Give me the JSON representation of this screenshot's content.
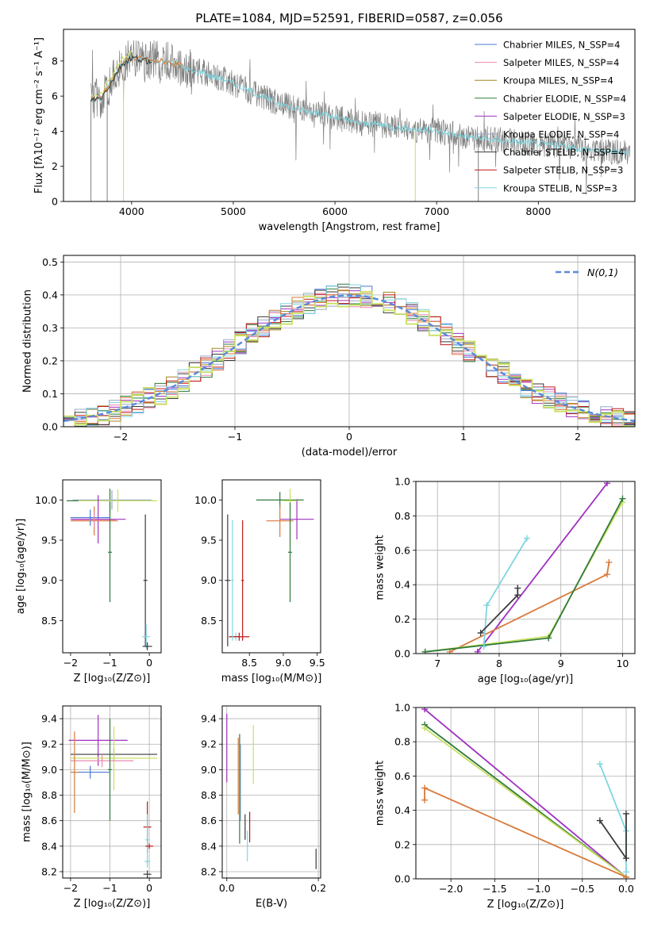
{
  "figure": {
    "title": "PLATE=1084, MJD=52591, FIBERID=0587, z=0.056"
  },
  "colors": {
    "Chabrier MILES": "#4a7ad6",
    "Salpeter MILES": "#ea8ab0",
    "Kroupa MILES": "#a08520",
    "Chabrier ELODIE": "#2f7a3a",
    "Salpeter ELODIE": "#a030c0",
    "Kroupa ELODIE": "#96a8c8",
    "Chabrier STELIB": "#3a3a3a",
    "Salpeter STELIB": "#c01818",
    "Kroupa STELIB": "#7ed6e0",
    "orange": "#d87a3a",
    "lime": "#c8e060",
    "data": "#808080",
    "gauss": "#5a8ad8"
  },
  "chart_data": [
    {
      "id": "spectrum",
      "type": "line",
      "title": "PLATE=1084, MJD=52591, FIBERID=0587, z=0.056",
      "xlabel": "wavelength [Angstrom, rest frame]",
      "ylabel": "Flux [fλ10⁻¹⁷ erg cm⁻² s⁻¹ A⁻¹]",
      "xlim": [
        3330,
        8950
      ],
      "ylim": [
        0,
        9.8
      ],
      "xticks": [
        4000,
        5000,
        6000,
        7000,
        8000
      ],
      "yticks": [
        0,
        2,
        4,
        6,
        8
      ],
      "grid": false,
      "legend_position": "upper-right",
      "legend": [
        "Chabrier MILES, N_SSP=4",
        "Salpeter MILES, N_SSP=4",
        "Kroupa MILES, N_SSP=4",
        "Chabrier ELODIE, N_SSP=4",
        "Salpeter ELODIE, N_SSP=3",
        "Kroupa ELODIE, N_SSP=4",
        "Chabrier STELIB, N_SSP=4",
        "Salpeter STELIB, N_SSP=3",
        "Kroupa STELIB, N_SSP=3"
      ],
      "continuum": {
        "x": [
          3600,
          3700,
          3800,
          3900,
          4000,
          4100,
          4200,
          4300,
          4400,
          4500,
          4600,
          4700,
          4800,
          4900,
          5000,
          5200,
          5400,
          5600,
          5800,
          6000,
          6200,
          6400,
          6600,
          6800,
          7000,
          7200,
          7400,
          7600,
          7800,
          8000,
          8200,
          8400,
          8600,
          8800
        ],
        "y": [
          5.8,
          5.9,
          6.8,
          7.8,
          8.2,
          8.1,
          8.0,
          8.0,
          7.9,
          7.7,
          7.4,
          7.4,
          7.1,
          7.0,
          6.7,
          6.2,
          5.7,
          5.3,
          5.1,
          4.8,
          4.5,
          4.4,
          4.2,
          4.1,
          4.0,
          3.8,
          3.6,
          3.5,
          3.4,
          3.3,
          3.2,
          3.0,
          2.9,
          2.8
        ]
      }
    },
    {
      "id": "residuals",
      "type": "line",
      "xlabel": "(data-model)/error",
      "ylabel": "Normed distribution",
      "xlim": [
        -2.5,
        2.5
      ],
      "ylim": [
        0,
        0.52
      ],
      "xticks": [
        -2,
        -1,
        0,
        1,
        2
      ],
      "yticks": [
        0.0,
        0.1,
        0.2,
        0.3,
        0.4,
        0.5
      ],
      "grid": true,
      "legend_position": "upper-right",
      "legend": [
        "N(0,1)"
      ],
      "gaussian": {
        "mean": 0,
        "sigma": 1
      }
    },
    {
      "id": "age-vs-Z",
      "type": "scatter",
      "xlabel": "Z [log₁₀(Z/Z⊙)]",
      "ylabel": "age  [log₁₀(age/yr)]",
      "xlim": [
        -2.2,
        0.3
      ],
      "ylim": [
        8.1,
        10.25
      ],
      "xticks": [
        -2,
        -1,
        0
      ],
      "yticks": [
        8.5,
        9.0,
        9.5,
        10.0
      ],
      "grid": false,
      "errorbars": [
        {
          "color": "Chabrier ELODIE",
          "x": -1.0,
          "y": 9.99,
          "xerr": 1.1,
          "yerr": 0.15
        },
        {
          "color": "Kroupa ELODIE",
          "x": -0.95,
          "y": 10.0,
          "xerr": 1.0,
          "yerr": 0.12
        },
        {
          "color": "lime",
          "x": -0.8,
          "y": 9.99,
          "xerr": 1.0,
          "yerr": 0.14
        },
        {
          "color": "Salpeter ELODIE",
          "x": -1.3,
          "y": 9.76,
          "xerr": 0.7,
          "yerr": 0.3
        },
        {
          "color": "orange",
          "x": -1.4,
          "y": 9.74,
          "xerr": 0.6,
          "yerr": 0.18
        },
        {
          "color": "Chabrier MILES",
          "x": -1.5,
          "y": 9.78,
          "xerr": 0.5,
          "yerr": 0.1
        },
        {
          "color": "Salpeter MILES",
          "x": -1.4,
          "y": 9.75,
          "xerr": 0.55,
          "yerr": 0.1
        },
        {
          "color": "Chabrier ELODIE",
          "x": -1.0,
          "y": 9.35,
          "xerr": 0.05,
          "yerr": 0.62
        },
        {
          "color": "Chabrier STELIB",
          "x": -0.1,
          "y": 9.0,
          "xerr": 0.05,
          "yerr": 0.82
        },
        {
          "color": "Kroupa STELIB",
          "x": -0.08,
          "y": 8.3,
          "xerr": 0.1,
          "yerr": 0.15
        },
        {
          "color": "Chabrier STELIB",
          "x": -0.05,
          "y": 8.18,
          "xerr": 0.12,
          "yerr": 0.05
        }
      ]
    },
    {
      "id": "age-vs-mass",
      "type": "scatter",
      "xlabel": "mass [log₁₀(M/M⊙)]",
      "ylabel": "",
      "xlim": [
        8.1,
        9.55
      ],
      "ylim": [
        8.1,
        10.25
      ],
      "xticks": [
        8.5,
        9.0,
        9.5
      ],
      "yticks": [
        8.5,
        9.0,
        9.5,
        10.0
      ],
      "grid": false,
      "errorbars": [
        {
          "color": "Chabrier ELODIE",
          "x": 8.95,
          "y": 10.0,
          "xerr": 0.35,
          "yerr": 0.1
        },
        {
          "color": "Salpeter ELODIE",
          "x": 9.2,
          "y": 9.76,
          "xerr": 0.25,
          "yerr": 0.25
        },
        {
          "color": "orange",
          "x": 8.95,
          "y": 9.74,
          "xerr": 0.2,
          "yerr": 0.2
        },
        {
          "color": "lime",
          "x": 9.1,
          "y": 9.99,
          "xerr": 0.1,
          "yerr": 0.15
        },
        {
          "color": "Chabrier ELODIE",
          "x": 9.1,
          "y": 9.35,
          "xerr": 0.03,
          "yerr": 0.62
        },
        {
          "color": "Salpeter STELIB",
          "x": 8.4,
          "y": 9.0,
          "xerr": 0.02,
          "yerr": 0.75
        },
        {
          "color": "Kroupa STELIB",
          "x": 8.3,
          "y": 8.3,
          "xerr": 0.1,
          "yerr": 0.05
        },
        {
          "color": "Salpeter STELIB",
          "x": 8.35,
          "y": 8.3,
          "xerr": 0.15,
          "yerr": 0.05
        },
        {
          "color": "Chabrier STELIB",
          "x": 8.18,
          "y": 9.0,
          "xerr": 0.04,
          "yerr": 0.82
        },
        {
          "color": "Kroupa STELIB",
          "x": 8.25,
          "y": 9.0,
          "xerr": 0.02,
          "yerr": 0.75
        }
      ]
    },
    {
      "id": "massweight-vs-age",
      "type": "line",
      "xlabel": "age  [log₁₀(age/yr)]",
      "ylabel": "mass weight",
      "xlim": [
        6.65,
        10.2
      ],
      "ylim": [
        0,
        1.0
      ],
      "xticks": [
        7,
        8,
        9,
        10
      ],
      "yticks": [
        0.0,
        0.2,
        0.4,
        0.6,
        0.8,
        1.0
      ],
      "grid": true,
      "series": [
        {
          "color": "Salpeter ELODIE",
          "x": [
            7.65,
            9.75
          ],
          "y": [
            0.01,
            0.99
          ]
        },
        {
          "color": "orange",
          "x": [
            7.2,
            9.75,
            9.78
          ],
          "y": [
            0.01,
            0.46,
            0.53
          ]
        },
        {
          "color": "lime",
          "x": [
            6.8,
            8.8,
            10.0
          ],
          "y": [
            0.01,
            0.1,
            0.88
          ]
        },
        {
          "color": "Chabrier ELODIE",
          "x": [
            6.8,
            8.8,
            10.0
          ],
          "y": [
            0.01,
            0.09,
            0.9
          ]
        },
        {
          "color": "Kroupa STELIB",
          "x": [
            7.75,
            7.8,
            8.45
          ],
          "y": [
            0.04,
            0.28,
            0.67
          ]
        },
        {
          "color": "Chabrier STELIB",
          "x": [
            7.7,
            8.3,
            8.3
          ],
          "y": [
            0.12,
            0.34,
            0.38
          ]
        }
      ]
    },
    {
      "id": "mass-vs-Z",
      "type": "scatter",
      "xlabel": "Z [log₁₀(Z/Z⊙)]",
      "ylabel": "mass [log₁₀(M/M⊙)]",
      "xlim": [
        -2.2,
        0.3
      ],
      "ylim": [
        8.15,
        9.5
      ],
      "xticks": [
        -2,
        -1,
        0
      ],
      "yticks": [
        8.2,
        8.4,
        8.6,
        8.8,
        9.0,
        9.2,
        9.4
      ],
      "grid": true,
      "errorbars": [
        {
          "color": "Salpeter ELODIE",
          "x": -1.3,
          "y": 9.23,
          "xerr": 0.75,
          "yerr": 0.2
        },
        {
          "color": "Chabrier STELIB",
          "x": -0.9,
          "y": 9.12,
          "xerr": 1.1,
          "yerr": 0.05
        },
        {
          "color": "lime",
          "x": -0.9,
          "y": 9.09,
          "xerr": 1.1,
          "yerr": 0.25
        },
        {
          "color": "Salpeter MILES",
          "x": -1.2,
          "y": 9.07,
          "xerr": 0.8,
          "yerr": 0.05
        },
        {
          "color": "Chabrier ELODIE",
          "x": -1.0,
          "y": 9.0,
          "xerr": 0.05,
          "yerr": 0.4
        },
        {
          "color": "Chabrier MILES",
          "x": -1.5,
          "y": 8.98,
          "xerr": 0.5,
          "yerr": 0.05
        },
        {
          "color": "orange",
          "x": -1.9,
          "y": 8.98,
          "xerr": 0.1,
          "yerr": 0.32
        },
        {
          "color": "Salpeter STELIB",
          "x": -0.05,
          "y": 8.55,
          "xerr": 0.1,
          "yerr": 0.2
        },
        {
          "color": "Kroupa STELIB",
          "x": -0.05,
          "y": 8.45,
          "xerr": 0.05,
          "yerr": 0.2
        },
        {
          "color": "Salpeter STELIB",
          "x": 0.0,
          "y": 8.4,
          "xerr": 0.1,
          "yerr": 0.02
        },
        {
          "color": "Kroupa STELIB",
          "x": -0.05,
          "y": 8.28,
          "xerr": 0.07,
          "yerr": 0.05
        },
        {
          "color": "Chabrier STELIB",
          "x": -0.05,
          "y": 8.18,
          "xerr": 0.1,
          "yerr": 0.03
        }
      ]
    },
    {
      "id": "mass-vs-EBV",
      "type": "scatter",
      "xlabel": "E(B-V)",
      "ylabel": "",
      "xlim": [
        -0.01,
        0.205
      ],
      "ylim": [
        8.15,
        9.5
      ],
      "xticks": [
        0.0,
        0.2
      ],
      "yticks": [
        8.2,
        8.4,
        8.6,
        8.8,
        9.0,
        9.2,
        9.4
      ],
      "grid": true,
      "errorbars": [
        {
          "color": "Salpeter ELODIE",
          "x": 0.0,
          "y": 9.17,
          "xerr": 0,
          "yerr": 0.27
        },
        {
          "color": "orange",
          "x": 0.025,
          "y": 8.95,
          "xerr": 0,
          "yerr": 0.3
        },
        {
          "color": "Chabrier ELODIE",
          "x": 0.028,
          "y": 8.85,
          "xerr": 0,
          "yerr": 0.43
        },
        {
          "color": "Kroupa ELODIE",
          "x": 0.03,
          "y": 8.9,
          "xerr": 0,
          "yerr": 0.3
        },
        {
          "color": "lime",
          "x": 0.058,
          "y": 9.12,
          "xerr": 0,
          "yerr": 0.23
        },
        {
          "color": "Chabrier STELIB",
          "x": 0.04,
          "y": 8.55,
          "xerr": 0,
          "yerr": 0.1
        },
        {
          "color": "Salpeter STELIB",
          "x": 0.05,
          "y": 8.55,
          "xerr": 0,
          "yerr": 0.12
        },
        {
          "color": "Kroupa STELIB",
          "x": 0.045,
          "y": 8.4,
          "xerr": 0,
          "yerr": 0.12
        },
        {
          "color": "Chabrier STELIB",
          "x": 0.195,
          "y": 8.3,
          "xerr": 0,
          "yerr": 0.08
        }
      ]
    },
    {
      "id": "massweight-vs-Z",
      "type": "line",
      "xlabel": "Z [log₁₀(Z/Z⊙)]",
      "ylabel": "mass weight",
      "xlim": [
        -2.4,
        0.1
      ],
      "ylim": [
        0,
        1.0
      ],
      "xticks": [
        -2.0,
        -1.5,
        -1.0,
        -0.5,
        0.0
      ],
      "yticks": [
        0.0,
        0.2,
        0.4,
        0.6,
        0.8,
        1.0
      ],
      "grid": true,
      "series": [
        {
          "color": "Salpeter ELODIE",
          "x": [
            -2.3,
            0.0
          ],
          "y": [
            0.99,
            0.01
          ]
        },
        {
          "color": "Chabrier ELODIE",
          "x": [
            -2.3,
            0.0
          ],
          "y": [
            0.9,
            0.01
          ]
        },
        {
          "color": "lime",
          "x": [
            -2.3,
            0.0
          ],
          "y": [
            0.88,
            0.01
          ]
        },
        {
          "color": "orange",
          "x": [
            -2.3,
            -2.3,
            0.0
          ],
          "y": [
            0.46,
            0.53,
            0.01
          ]
        },
        {
          "color": "Kroupa STELIB",
          "x": [
            -0.3,
            0.0,
            0.0
          ],
          "y": [
            0.67,
            0.28,
            0.04
          ]
        },
        {
          "color": "Chabrier STELIB",
          "x": [
            -0.3,
            0.0,
            0.0
          ],
          "y": [
            0.34,
            0.12,
            0.38
          ]
        }
      ]
    }
  ]
}
